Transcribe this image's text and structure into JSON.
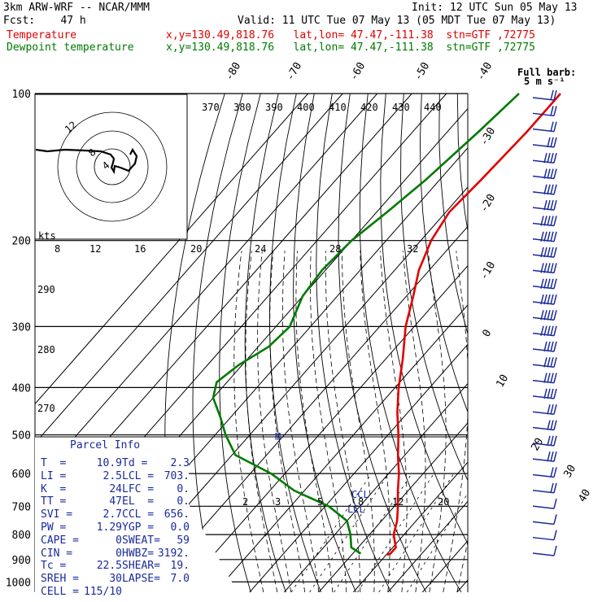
{
  "header": {
    "title": "3km ARW-WRF -- NCAR/MMM",
    "init": "Init: 12 UTC Sun 05 May 13",
    "fcst": "Fcst:    47 h",
    "valid": "Valid: 11 UTC Tue 07 May 13 (05 MDT Tue 07 May 13)",
    "temp_label": "Temperature",
    "temp_info": "x,y=130.49,818.76   lat,lon= 47.47,-111.38  stn=GTF ,72775",
    "dew_label": "Dewpoint temperature",
    "dew_info": "x,y=130.49,818.76   lat,lon= 47.47,-111.38  stn=GTF ,72775"
  },
  "barb_legend": {
    "line1": "Full barb:",
    "line2": "5 m s⁻¹"
  },
  "hodograph": {
    "ring_labels": [
      "12",
      "8",
      "4"
    ]
  },
  "parcel_info": {
    "title": "Parcel Info",
    "rows": [
      [
        "T  =",
        "10.9",
        "Td =",
        "2.3"
      ],
      [
        "LI =",
        "2.5",
        "LCL =",
        "703."
      ],
      [
        "K  =",
        "24",
        "LFC =",
        "0."
      ],
      [
        "TT =",
        "47",
        "EL  =",
        "0."
      ],
      [
        "SVI =",
        "2.7",
        "CCL =",
        "656."
      ],
      [
        "PW =",
        "1.29",
        "YGP =",
        "0.0"
      ],
      [
        "CAPE =",
        "0",
        "SWEAT=",
        "59"
      ],
      [
        "CIN =",
        "0",
        "HWBZ=",
        "3192."
      ],
      [
        "Tc =",
        "22.5",
        "SHEAR=",
        "19."
      ],
      [
        "SREH =",
        "30",
        "LAPSE=",
        "7.0"
      ],
      [
        "CELL =",
        "115/10",
        "",
        ""
      ]
    ]
  },
  "markers": {
    "ccl": "CCL",
    "lcl": "LCL"
  },
  "chart_data": {
    "type": "line",
    "title": "",
    "ylabel": "",
    "pressure_levels": [
      100,
      200,
      300,
      400,
      500,
      600,
      700,
      800,
      900,
      1000
    ],
    "pressure_tick_labels": [
      "100",
      "200",
      "300",
      "400",
      "500",
      "600",
      "700",
      "800",
      "900",
      "1000"
    ],
    "isotherm_labels": [
      "-80",
      "-70",
      "-60",
      "-50",
      "-40",
      "-30",
      "-20",
      "-10",
      "0",
      "10",
      "20",
      "30",
      "40"
    ],
    "theta_labels": [
      "370",
      "380",
      "390",
      "400",
      "410",
      "420",
      "430",
      "440"
    ],
    "theta_left_labels": [
      "290",
      "280",
      "270"
    ],
    "mixing_ratio_labels_upper": [
      "kts",
      "8",
      "12",
      "16",
      "20",
      "24",
      "28",
      "32"
    ],
    "mixing_ratio_labels_lower": [
      "2",
      "3",
      "5",
      "8",
      "12",
      "20"
    ],
    "series": [
      {
        "name": "Temperature",
        "color": "#e00000",
        "pressure": [
          100,
          120,
          150,
          175,
          200,
          230,
          260,
          300,
          350,
          400,
          450,
          500,
          550,
          600,
          650,
          700,
          750,
          800,
          850,
          875,
          880
        ],
        "temp_c": [
          -57,
          -57,
          -58,
          -59,
          -57,
          -53,
          -48,
          -42.5,
          -35,
          -29,
          -23,
          -17,
          -12,
          -7,
          -3,
          1,
          4.5,
          7,
          10.9,
          10.9,
          10.2
        ]
      },
      {
        "name": "Dewpoint temperature",
        "color": "#007a00",
        "pressure": [
          100,
          120,
          150,
          175,
          200,
          230,
          260,
          300,
          330,
          360,
          390,
          420,
          460,
          500,
          550,
          600,
          650,
          700,
          750,
          800,
          850,
          875
        ],
        "temp_c": [
          -69,
          -71,
          -74,
          -77,
          -80,
          -81,
          -80,
          -76,
          -77,
          -81,
          -83,
          -80,
          -73,
          -67,
          -59,
          -44,
          -33,
          -19,
          -10,
          -5.5,
          -2,
          2.3
        ]
      }
    ],
    "wind_barbs_kts": [
      15,
      15,
      20,
      25,
      35,
      35,
      40,
      40,
      45,
      45,
      45,
      45,
      45,
      45,
      45,
      45,
      40,
      40,
      35,
      35,
      30,
      30,
      30,
      30,
      20,
      15,
      10,
      10,
      10,
      10
    ]
  }
}
